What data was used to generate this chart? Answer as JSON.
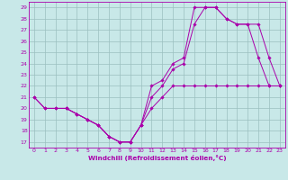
{
  "xlabel": "Windchill (Refroidissement éolien,°C)",
  "bg_color": "#c8e8e8",
  "line_color": "#aa00aa",
  "xlim": [
    -0.5,
    23.5
  ],
  "ylim": [
    16.5,
    29.5
  ],
  "xticks": [
    0,
    1,
    2,
    3,
    4,
    5,
    6,
    7,
    8,
    9,
    10,
    11,
    12,
    13,
    14,
    15,
    16,
    17,
    18,
    19,
    20,
    21,
    22,
    23
  ],
  "yticks": [
    17,
    18,
    19,
    20,
    21,
    22,
    23,
    24,
    25,
    26,
    27,
    28,
    29
  ],
  "lines": [
    {
      "x": [
        0,
        1,
        2,
        3,
        4,
        5,
        6,
        7,
        8,
        9,
        10,
        11,
        12,
        13,
        14,
        15,
        16,
        17,
        18,
        19,
        20,
        21,
        22,
        23
      ],
      "y": [
        21,
        20,
        20,
        20,
        19.5,
        19,
        18.5,
        17.5,
        17.0,
        17.0,
        18.5,
        20,
        21,
        22,
        22,
        22,
        22,
        22,
        22,
        22,
        22,
        22,
        22,
        22
      ]
    },
    {
      "x": [
        3,
        4,
        5,
        6,
        7,
        8,
        9,
        10,
        11,
        12,
        13,
        14,
        15,
        16,
        17,
        18,
        19,
        20,
        21,
        22,
        23
      ],
      "y": [
        20,
        19.5,
        19.0,
        18.5,
        17.5,
        17.0,
        17.0,
        18.5,
        22,
        22.5,
        24,
        24.5,
        29,
        29,
        29,
        28,
        27.5,
        27.5,
        27.5,
        24.5,
        22
      ]
    },
    {
      "x": [
        0,
        1,
        2,
        3,
        4,
        5,
        6,
        7,
        8,
        9,
        10,
        11,
        12,
        13,
        14,
        15,
        16,
        17,
        18,
        19,
        20,
        21,
        22,
        23
      ],
      "y": [
        21,
        20,
        20,
        20,
        19.5,
        19,
        18.5,
        17.5,
        17.0,
        17.0,
        18.5,
        21,
        22,
        23.5,
        24,
        27.5,
        29,
        29,
        28,
        27.5,
        27.5,
        24.5,
        22,
        22
      ]
    }
  ],
  "grid_color": "#9bbfbf",
  "marker": "D",
  "markersize": 1.8,
  "linewidth": 0.7,
  "tick_fontsize": 4.5,
  "xlabel_fontsize": 5.2,
  "xlabel_fontweight": "bold"
}
